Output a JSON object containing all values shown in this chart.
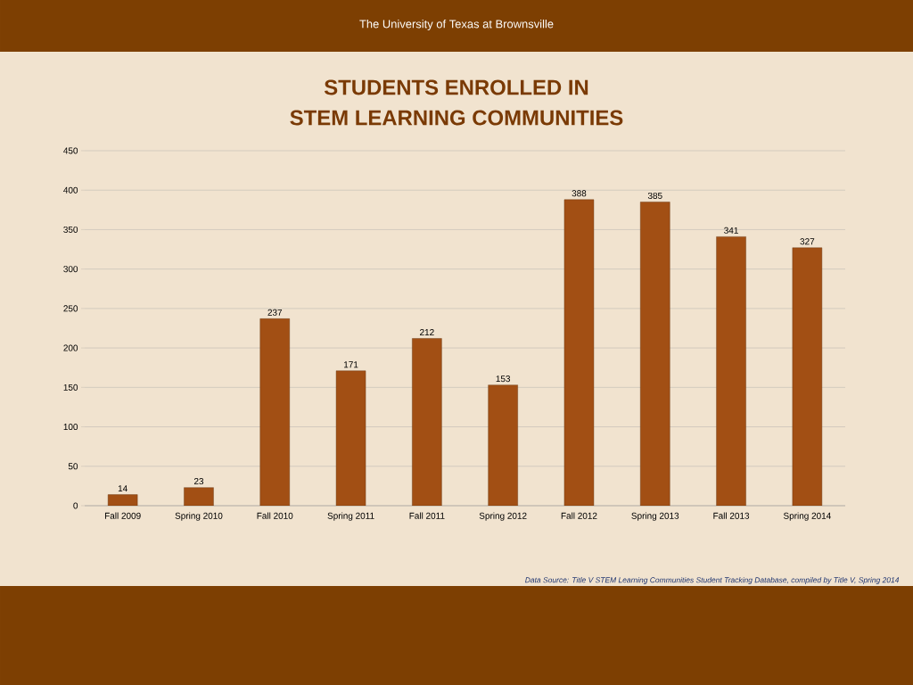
{
  "chart_data": {
    "type": "bar",
    "title": "STUDENTS ENROLLED IN",
    "subtitle": "STEM LEARNING COMMUNITIES",
    "annotations": [
      "The University of Texas at Brownsville",
      "*Data Source: Title V STEM  Learning Communities Student Tracking Database, compiled by Title V, Spring 2014*"
    ],
    "categories": [
      "Fall 2009",
      "Spring 2010",
      "Fall 2010",
      "Spring 2011",
      "Fall 2011",
      "Spring 2012",
      "Fall 2012",
      "Spring 2013",
      "Fall 2013",
      "Spring 2014"
    ],
    "values": [
      14,
      23,
      237,
      171,
      212,
      153,
      388,
      385,
      341,
      327
    ],
    "color": "#a24f14",
    "ylim": [
      0,
      450
    ],
    "yticks": [
      0,
      50,
      100,
      150,
      200,
      250,
      300,
      350,
      400,
      450
    ],
    "grid": "y",
    "data_labels": true
  }
}
